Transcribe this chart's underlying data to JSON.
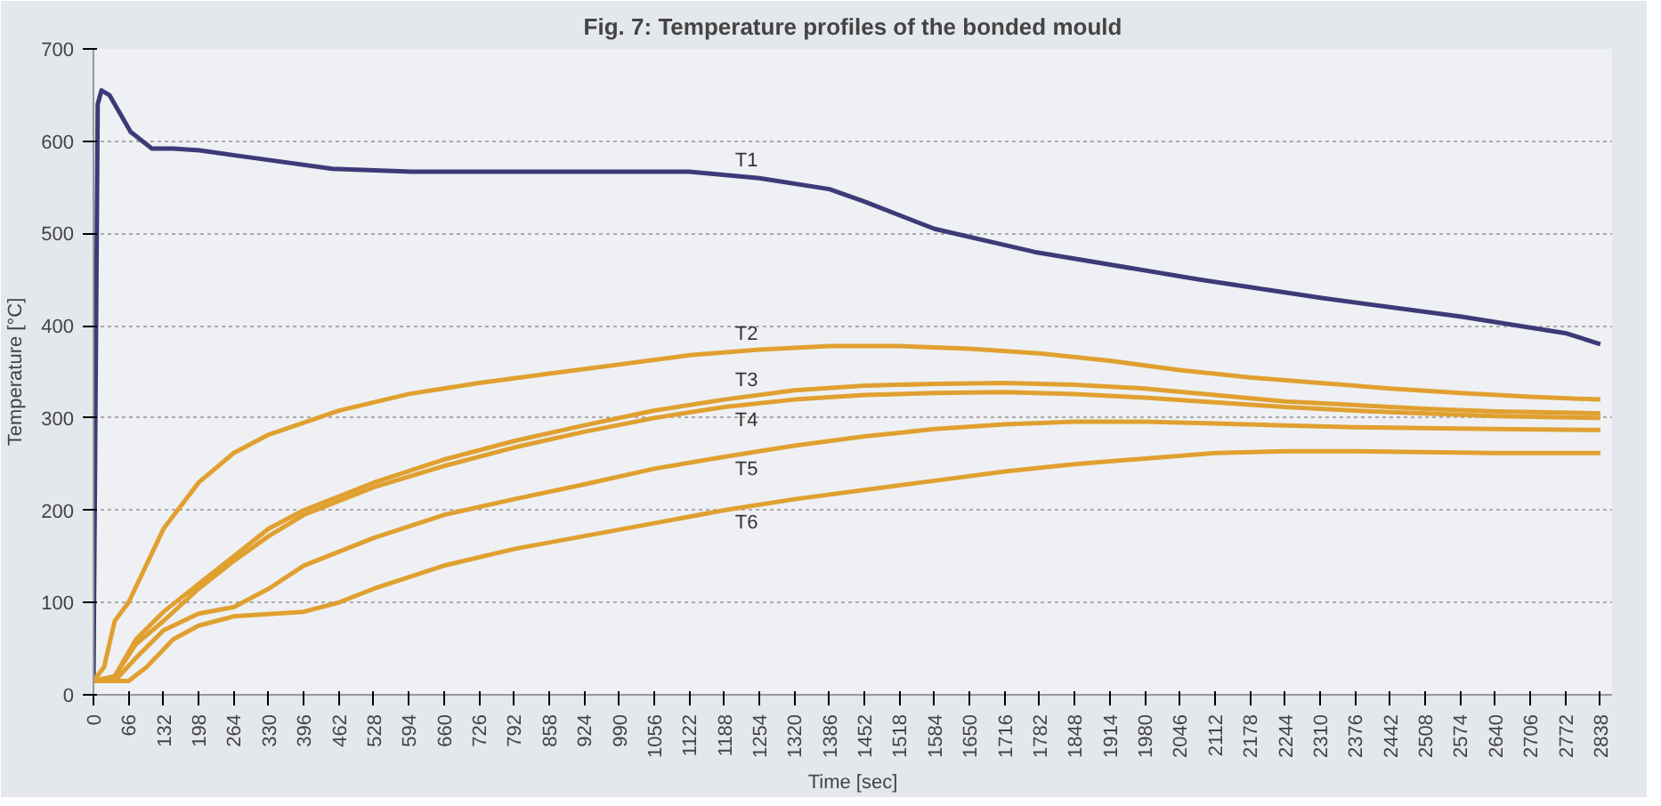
{
  "chart_data": {
    "type": "line",
    "title": "Fig. 7: Temperature profiles of the bonded mould",
    "xlabel": "Time [sec]",
    "ylabel": "Temperature [°C]",
    "xlim": [
      0,
      2860
    ],
    "ylim": [
      0,
      700
    ],
    "xticks": [
      0,
      66,
      132,
      198,
      264,
      330,
      396,
      462,
      528,
      594,
      660,
      726,
      792,
      858,
      924,
      990,
      1056,
      1122,
      1188,
      1254,
      1320,
      1386,
      1452,
      1518,
      1584,
      1650,
      1716,
      1782,
      1848,
      1914,
      1980,
      2046,
      2112,
      2178,
      2244,
      2310,
      2376,
      2442,
      2508,
      2574,
      2640,
      2706,
      2772,
      2838
    ],
    "yticks": [
      0,
      100,
      200,
      300,
      400,
      500,
      600,
      700
    ],
    "grid": "y",
    "line_style": "solid",
    "marker": "none",
    "series": [
      {
        "name": "T1",
        "color": "#3d3a78",
        "x": [
          0,
          8,
          15,
          30,
          70,
          110,
          150,
          200,
          300,
          450,
          600,
          900,
          1122,
          1254,
          1386,
          1450,
          1584,
          1772,
          2083,
          2314,
          2574,
          2772,
          2838
        ],
        "values": [
          15,
          640,
          655,
          650,
          610,
          592,
          592,
          590,
          582,
          570,
          567,
          567,
          567,
          560,
          548,
          535,
          505,
          480,
          450,
          430,
          410,
          392,
          380
        ]
      },
      {
        "name": "T2",
        "color": "#e0a030",
        "x": [
          0,
          20,
          40,
          66,
          132,
          198,
          264,
          330,
          462,
          594,
          726,
          858,
          990,
          1122,
          1254,
          1386,
          1518,
          1650,
          1782,
          1914,
          2046,
          2178,
          2310,
          2442,
          2574,
          2706,
          2838
        ],
        "values": [
          15,
          30,
          80,
          100,
          180,
          230,
          262,
          282,
          308,
          326,
          338,
          348,
          358,
          368,
          374,
          378,
          378,
          375,
          370,
          362,
          352,
          344,
          338,
          332,
          327,
          323,
          320
        ]
      },
      {
        "name": "T3",
        "color": "#e0a030",
        "x": [
          0,
          40,
          80,
          132,
          198,
          264,
          330,
          396,
          528,
          660,
          792,
          924,
          1056,
          1188,
          1320,
          1452,
          1584,
          1716,
          1848,
          1980,
          2112,
          2244,
          2376,
          2508,
          2640,
          2838
        ],
        "values": [
          15,
          20,
          60,
          90,
          120,
          150,
          180,
          200,
          230,
          255,
          275,
          292,
          308,
          320,
          330,
          335,
          337,
          338,
          336,
          332,
          325,
          318,
          314,
          310,
          307,
          305
        ]
      },
      {
        "name": "T4",
        "color": "#e0a030",
        "x": [
          0,
          40,
          80,
          132,
          198,
          264,
          330,
          396,
          528,
          660,
          792,
          924,
          1056,
          1188,
          1320,
          1452,
          1584,
          1716,
          1848,
          1980,
          2112,
          2244,
          2376,
          2508,
          2640,
          2838
        ],
        "values": [
          15,
          20,
          55,
          80,
          115,
          145,
          172,
          195,
          225,
          248,
          268,
          285,
          300,
          312,
          320,
          325,
          327,
          328,
          326,
          322,
          317,
          312,
          308,
          305,
          302,
          300
        ]
      },
      {
        "name": "T5",
        "color": "#e0a030",
        "x": [
          0,
          40,
          80,
          132,
          198,
          264,
          330,
          396,
          528,
          660,
          792,
          924,
          1056,
          1188,
          1320,
          1452,
          1584,
          1716,
          1848,
          1980,
          2112,
          2244,
          2376,
          2508,
          2640,
          2838
        ],
        "values": [
          15,
          15,
          40,
          70,
          88,
          95,
          115,
          140,
          170,
          195,
          212,
          228,
          245,
          258,
          270,
          280,
          288,
          293,
          296,
          296,
          294,
          292,
          290,
          289,
          288,
          287
        ]
      },
      {
        "name": "T6",
        "color": "#e0a030",
        "x": [
          0,
          66,
          100,
          150,
          198,
          264,
          396,
          462,
          528,
          660,
          792,
          924,
          1056,
          1188,
          1320,
          1452,
          1584,
          1716,
          1848,
          1980,
          2112,
          2244,
          2376,
          2508,
          2640,
          2838
        ],
        "values": [
          15,
          15,
          30,
          60,
          75,
          85,
          90,
          100,
          115,
          140,
          158,
          172,
          186,
          200,
          212,
          222,
          232,
          242,
          250,
          256,
          262,
          264,
          264,
          263,
          262,
          262
        ]
      }
    ]
  }
}
